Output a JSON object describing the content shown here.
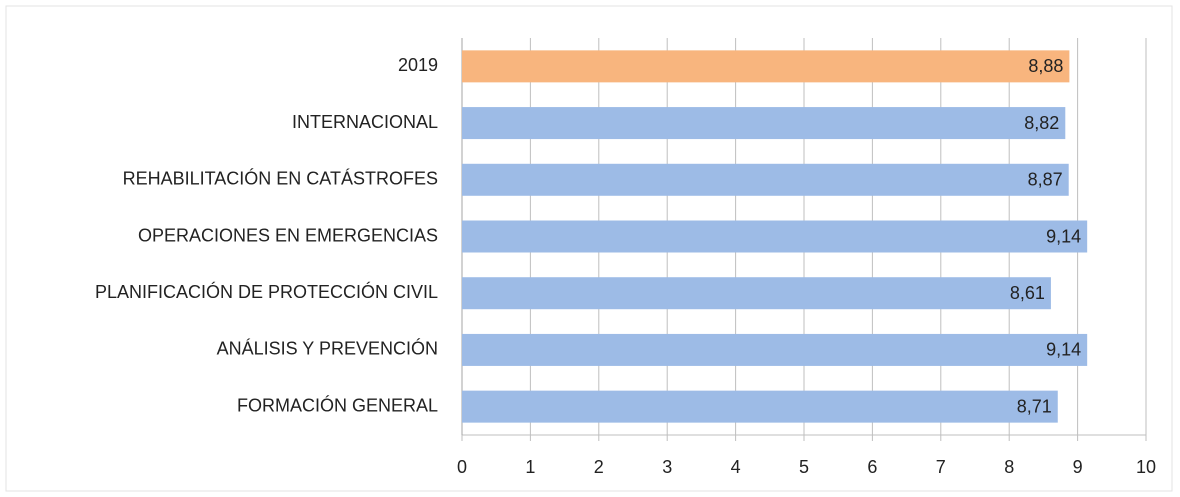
{
  "chart_data": {
    "type": "bar",
    "orientation": "horizontal",
    "categories": [
      "2019",
      "INTERNACIONAL",
      "REHABILITACIÓN EN CATÁSTROFES",
      "OPERACIONES EN EMERGENCIAS",
      "PLANIFICACIÓN DE PROTECCIÓN CIVIL",
      "ANÁLISIS Y PREVENCIÓN",
      "FORMACIÓN GENERAL"
    ],
    "values": [
      8.88,
      8.82,
      8.87,
      9.14,
      8.61,
      9.14,
      8.71
    ],
    "value_labels": [
      "8,88",
      "8,82",
      "8,87",
      "9,14",
      "8,61",
      "9,14",
      "8,71"
    ],
    "colors": [
      "#f8b57e",
      "#9dbbe6",
      "#9dbbe6",
      "#9dbbe6",
      "#9dbbe6",
      "#9dbbe6",
      "#9dbbe6"
    ],
    "xlim": [
      0,
      10
    ],
    "xticks": [
      0,
      1,
      2,
      3,
      4,
      5,
      6,
      7,
      8,
      9,
      10
    ],
    "grid": true
  }
}
